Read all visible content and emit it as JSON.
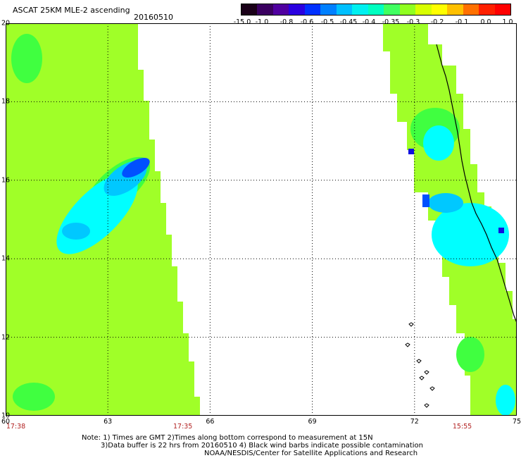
{
  "header": {
    "title": "ASCAT 25KM MLE-2 ascending",
    "date": "20160510"
  },
  "colorbar": {
    "labels": [
      "-15.0",
      "-1.0",
      "-0.8",
      "-0.6",
      "-0.5",
      "-0.45",
      "-0.4",
      "-0.35",
      "-0.3",
      "-0.2",
      "-0.1",
      "0.0",
      "1.0"
    ],
    "colors": [
      "#1a0018",
      "#3a0060",
      "#5000a0",
      "#2a00e0",
      "#0030ff",
      "#0080ff",
      "#00c0ff",
      "#00f0f0",
      "#00ffc0",
      "#40ff60",
      "#90ff20",
      "#d8ff00",
      "#ffff00",
      "#ffc000",
      "#ff7000",
      "#ff2000",
      "#ff0000"
    ]
  },
  "map": {
    "lat_labels": [
      "20",
      "18",
      "16",
      "14",
      "12",
      "10"
    ],
    "lon_labels": [
      "60",
      "63",
      "66",
      "69",
      "72",
      "75"
    ],
    "lat_range": [
      10,
      20
    ],
    "lon_range": [
      60,
      75
    ],
    "time_labels": [
      {
        "text": "17:38",
        "lon": 60.3
      },
      {
        "text": "17:35",
        "lon": 65.2
      },
      {
        "text": "15:55",
        "lon": 73.4
      }
    ]
  },
  "notes": {
    "line1": "Note: 1) Times are GMT 2)Times along bottom correspond to measurement at 15N",
    "line2": "3)Data buffer is 22 hrs from 20160510 4) Black wind barbs indicate possible contamination",
    "line3": "NOAA/NESDIS/Center for Satellite Applications and Research"
  },
  "palette": {
    "base_green": "#a0ff28",
    "green": "#40ff40",
    "cyan": "#00ffff",
    "sky": "#00c8ff",
    "blue": "#0050ff",
    "deep_blue": "#1010e0"
  }
}
